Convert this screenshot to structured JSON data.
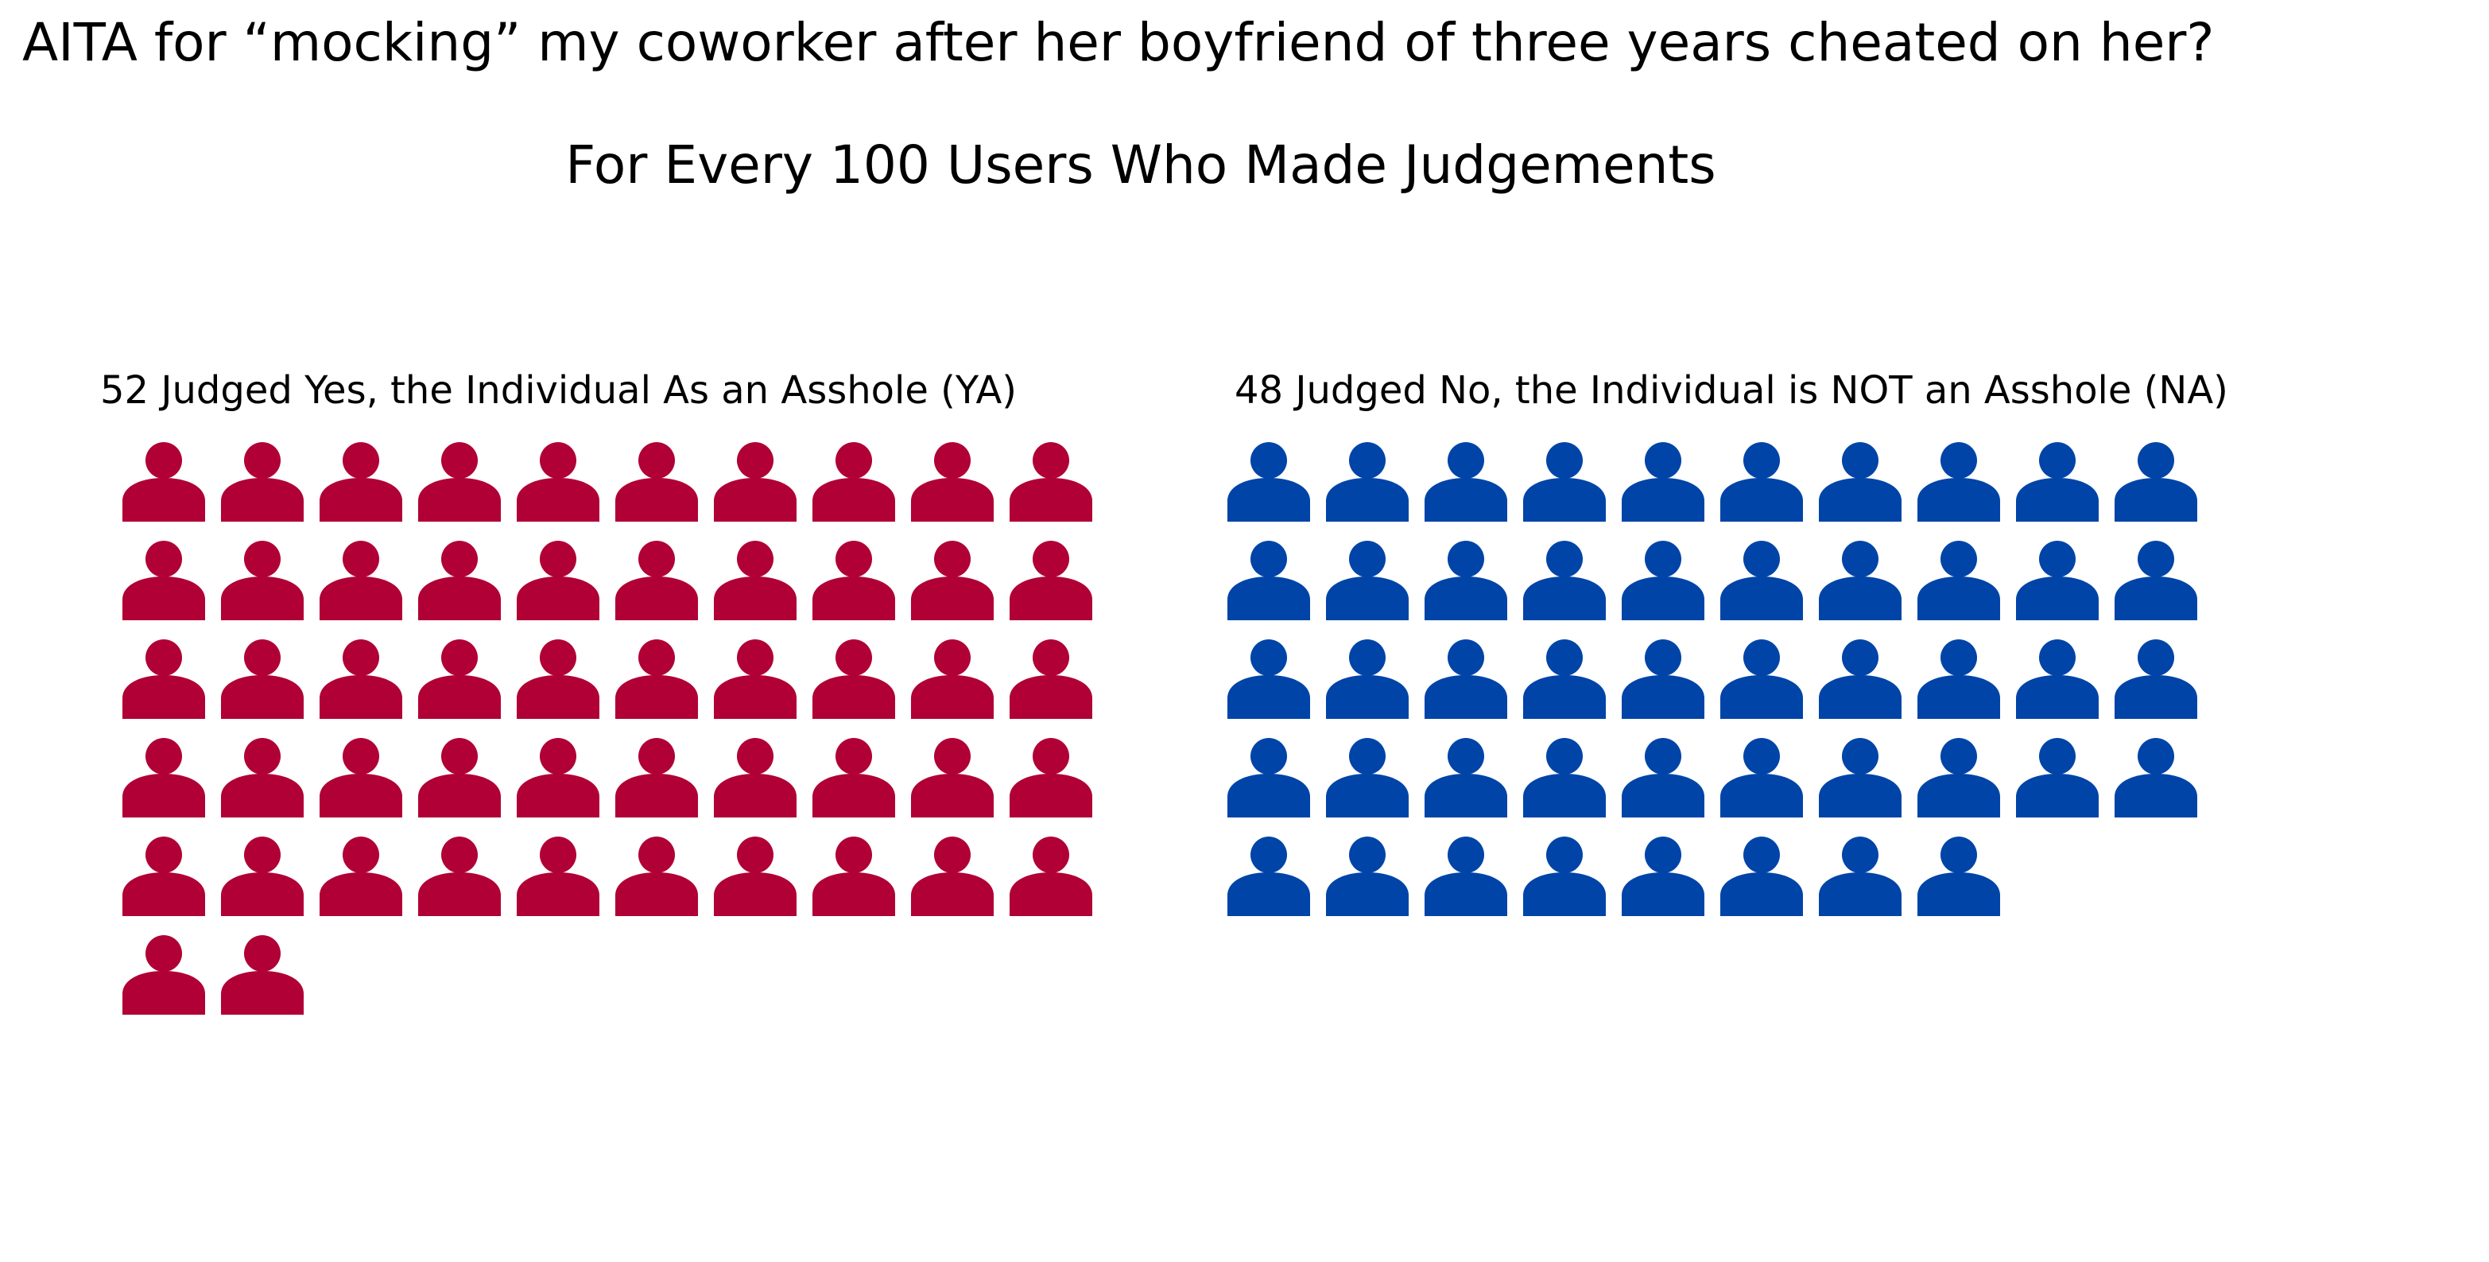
{
  "chart_data": {
    "type": "waffle",
    "title": "AITA for “mocking” my coworker after her boyfriend of three years cheated on her?",
    "subtitle": "For Every 100 Users Who Made Judgements",
    "icons_per_row": 10,
    "icon": "person-icon",
    "groups": [
      {
        "key": "ya",
        "label": "52 Judged Yes, the Individual As an Asshole (YA)",
        "count": 52,
        "color": "#B00035"
      },
      {
        "key": "na",
        "label": "48 Judged No, the Individual is NOT an Asshole (NA)",
        "count": 48,
        "color": "#0044A8"
      }
    ]
  }
}
